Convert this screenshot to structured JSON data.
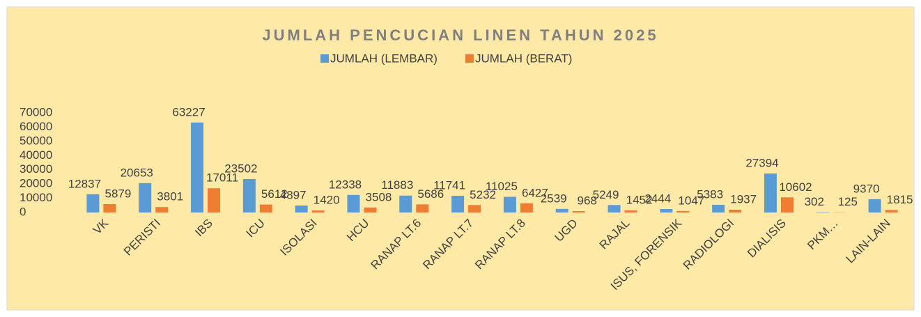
{
  "chart_data": {
    "type": "bar",
    "title": "JUMLAH PENCUCIAN LINEN TAHUN 2025",
    "categories": [
      "VK",
      "PERISTI",
      "IBS",
      "ICU",
      "ISOLASI",
      "HCU",
      "RANAP LT.6",
      "RANAP LT.7",
      "RANAP LT.8",
      "UGD",
      "RAJAL",
      "ISUS, FORENSIK",
      "RADIOLOGI",
      "DIALISIS",
      "PKM…",
      "LAIN-LAIN"
    ],
    "series": [
      {
        "name": "JUMLAH (LEMBAR)",
        "color": "#5b9bd5",
        "values": [
          12837,
          20653,
          63227,
          23502,
          4897,
          12338,
          11883,
          11741,
          11025,
          2539,
          5249,
          2444,
          5383,
          27394,
          302,
          9370
        ]
      },
      {
        "name": "JUMLAH (BERAT)",
        "color": "#ed7d31",
        "values": [
          5879,
          3801,
          17011,
          5612,
          1420,
          3508,
          5686,
          5232,
          6427,
          968,
          1452,
          1047,
          1937,
          10602,
          125,
          1815
        ]
      }
    ],
    "ylim": [
      0,
      70000
    ],
    "yticks": [
      0,
      10000,
      20000,
      30000,
      40000,
      50000,
      60000,
      70000
    ],
    "legend": "top"
  }
}
